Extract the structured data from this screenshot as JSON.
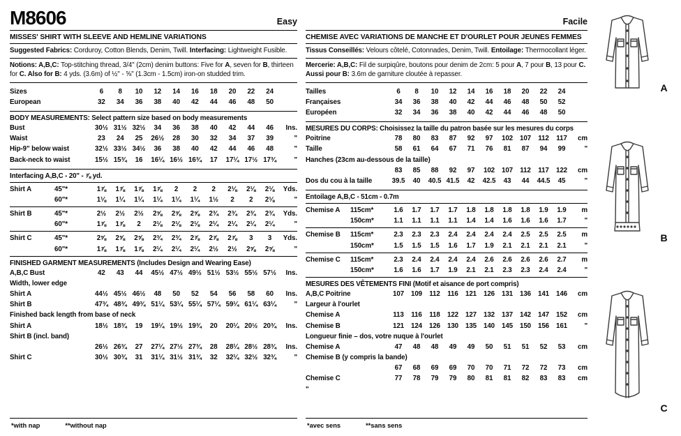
{
  "header": {
    "pattern_number": "M8606"
  },
  "sketches": {
    "labels": [
      "A",
      "B",
      "C"
    ]
  },
  "english": {
    "difficulty": "Easy",
    "title": "MISSES' SHIRT WITH SLEEVE AND HEMLINE VARIATIONS",
    "fabrics": [
      {
        "t": "Suggested Fabrics: ",
        "b": 1
      },
      {
        "t": "Corduroy, Cotton Blends, Denim, Twill. ",
        "b": 0
      },
      {
        "t": "Interfacing: ",
        "b": 1
      },
      {
        "t": "Lightweight Fusible.",
        "b": 0
      }
    ],
    "notions": [
      {
        "t": "Notions: A,B,C: ",
        "b": 1
      },
      {
        "t": "Top-stitching thread, 3/4\" (2cm) denim buttons: Five for ",
        "b": 0
      },
      {
        "t": "A",
        "b": 1
      },
      {
        "t": ", seven for ",
        "b": 0
      },
      {
        "t": "B",
        "b": 1
      },
      {
        "t": ", thirteen for ",
        "b": 0
      },
      {
        "t": "C. ",
        "b": 1
      },
      {
        "t": "Also for B: ",
        "b": 1
      },
      {
        "t": "4 yds. (3.6m) of ½\" - ⅝\" (1.3cm - 1.5cm) iron-on studded trim.",
        "b": 0
      }
    ],
    "sizes_rows": [
      {
        "label": "Sizes",
        "sub": "",
        "values": [
          "6",
          "8",
          "10",
          "12",
          "14",
          "16",
          "18",
          "20",
          "22",
          "24"
        ],
        "unit": ""
      },
      {
        "label": "European",
        "sub": "",
        "values": [
          "32",
          "34",
          "36",
          "38",
          "40",
          "42",
          "44",
          "46",
          "48",
          "50"
        ],
        "unit": ""
      }
    ],
    "body_header": "BODY MEASUREMENTS: Select pattern size based on body measurements",
    "body_rows": [
      {
        "label": "Bust",
        "sub": "",
        "values": [
          "30½",
          "31½",
          "32½",
          "34",
          "36",
          "38",
          "40",
          "42",
          "44",
          "46"
        ],
        "unit": "Ins."
      },
      {
        "label": "Waist",
        "sub": "",
        "values": [
          "23",
          "24",
          "25",
          "26½",
          "28",
          "30",
          "32",
          "34",
          "37",
          "39"
        ],
        "unit": "\""
      },
      {
        "label": "Hip-9\" below waist",
        "sub": "",
        "values": [
          "32½",
          "33½",
          "34½",
          "36",
          "38",
          "40",
          "42",
          "44",
          "46",
          "48"
        ],
        "unit": "\""
      },
      {
        "label": "Back-neck to waist",
        "sub": "",
        "values": [
          "15½",
          "15¾",
          "16",
          "16¼",
          "16½",
          "16¾",
          "17",
          "17¼",
          "17½",
          "17¾"
        ],
        "unit": "\""
      }
    ],
    "interfacing_note": "Interfacing A,B,C - 20\" - ⅞ yd.",
    "yardage_rows": [
      {
        "label": "Shirt A",
        "sub": "45\"*",
        "values": [
          "1⅞",
          "1⅞",
          "1⅞",
          "1⅞",
          "2",
          "2",
          "2",
          "2⅛",
          "2⅛",
          "2⅛"
        ],
        "unit": "Yds."
      },
      {
        "label": "",
        "sub": "60\"*",
        "values": [
          "1⅛",
          "1¼",
          "1¼",
          "1¼",
          "1¼",
          "1¼",
          "1½",
          "2",
          "2",
          "2⅛"
        ],
        "unit": "\""
      },
      {
        "rule": true
      },
      {
        "label": "Shirt B",
        "sub": "45\"*",
        "values": [
          "2½",
          "2½",
          "2½",
          "2⅝",
          "2⅝",
          "2⅝",
          "2¾",
          "2¾",
          "2¾",
          "2¾"
        ],
        "unit": "Yds."
      },
      {
        "label": "",
        "sub": "60\"*",
        "values": [
          "1⅞",
          "1⅞",
          "2",
          "2⅛",
          "2⅛",
          "2⅛",
          "2¼",
          "2¼",
          "2¼",
          "2¼"
        ],
        "unit": "\""
      },
      {
        "rule": true
      },
      {
        "label": "Shirt C",
        "sub": "45\"*",
        "values": [
          "2⅝",
          "2⅝",
          "2⅝",
          "2¾",
          "2¾",
          "2⅞",
          "2⅞",
          "2⅞",
          "3",
          "3"
        ],
        "unit": "Yds."
      },
      {
        "label": "",
        "sub": "60\"*",
        "values": [
          "1⅞",
          "1⅞",
          "1⅞",
          "2¼",
          "2¼",
          "2¼",
          "2½",
          "2½",
          "2⅝",
          "2⅝"
        ],
        "unit": "\""
      }
    ],
    "finished_header": "FINISHED GARMENT MEASUREMENTS (Includes Design and Wearing Ease)",
    "finished_rows": [
      {
        "label": "A,B,C Bust",
        "sub": "",
        "values": [
          "42",
          "43",
          "44",
          "45½",
          "47½",
          "49½",
          "51½",
          "53½",
          "55½",
          "57½"
        ],
        "unit": "Ins."
      },
      {
        "label": "Width, lower edge",
        "sub": "",
        "values": [],
        "unit": ""
      },
      {
        "label": "Shirt A",
        "sub": "",
        "values": [
          "44½",
          "45½",
          "46½",
          "48",
          "50",
          "52",
          "54",
          "56",
          "58",
          "60"
        ],
        "unit": "Ins."
      },
      {
        "label": "Shirt B",
        "sub": "",
        "values": [
          "47¾",
          "48¾",
          "49¾",
          "51¼",
          "53¼",
          "55¼",
          "57¼",
          "59¼",
          "61¼",
          "63¼"
        ],
        "unit": "\""
      },
      {
        "label": "Finished back length from base of neck",
        "sub": "",
        "values": [],
        "unit": ""
      },
      {
        "label": "Shirt A",
        "sub": "",
        "values": [
          "18½",
          "18¾",
          "19",
          "19¼",
          "19½",
          "19¾",
          "20",
          "20¼",
          "20½",
          "20¾"
        ],
        "unit": "Ins."
      },
      {
        "label": "Shirt B (incl. band)",
        "sub": "",
        "values": [],
        "unit": ""
      },
      {
        "label": "",
        "sub": "",
        "values": [
          "26½",
          "26¾",
          "27",
          "27¼",
          "27½",
          "27¾",
          "28",
          "28¼",
          "28½",
          "28¾"
        ],
        "unit": "Ins."
      },
      {
        "label": "Shirt C",
        "sub": "",
        "values": [
          "30½",
          "30¾",
          "31",
          "31¼",
          "31½",
          "31¾",
          "32",
          "32¼",
          "32½",
          "32¾"
        ],
        "unit": "\""
      }
    ],
    "footnotes": {
      "n1": "*with nap",
      "n2": "**without nap"
    }
  },
  "french": {
    "difficulty": "Facile",
    "title": "CHEMISE AVEC VARIATIONS DE MANCHE ET D'OURLET POUR JEUNES FEMMES",
    "fabrics": [
      {
        "t": "Tissus Conseillés: ",
        "b": 1
      },
      {
        "t": "Velours côtelé, Cotonnades, Denim, Twill. ",
        "b": 0
      },
      {
        "t": "Entoilage: ",
        "b": 1
      },
      {
        "t": "Thermocollant léger.",
        "b": 0
      }
    ],
    "notions": [
      {
        "t": "Mercerie: A,B,C: ",
        "b": 1
      },
      {
        "t": "Fil de surpiqûre, boutons pour denim de 2cm: 5 pour ",
        "b": 0
      },
      {
        "t": "A",
        "b": 1
      },
      {
        "t": ", 7 pour ",
        "b": 0
      },
      {
        "t": "B",
        "b": 1
      },
      {
        "t": ", 13 pour ",
        "b": 0
      },
      {
        "t": "C. ",
        "b": 1
      },
      {
        "t": "Aussi pour B: ",
        "b": 1
      },
      {
        "t": "3.6m de garniture cloutée à repasser.",
        "b": 0
      }
    ],
    "sizes_rows": [
      {
        "label": "Tailles",
        "sub": "",
        "values": [
          "6",
          "8",
          "10",
          "12",
          "14",
          "16",
          "18",
          "20",
          "22",
          "24"
        ],
        "unit": ""
      },
      {
        "label": "Françaises",
        "sub": "",
        "values": [
          "34",
          "36",
          "38",
          "40",
          "42",
          "44",
          "46",
          "48",
          "50",
          "52"
        ],
        "unit": ""
      },
      {
        "label": "Européen",
        "sub": "",
        "values": [
          "32",
          "34",
          "36",
          "38",
          "40",
          "42",
          "44",
          "46",
          "48",
          "50"
        ],
        "unit": ""
      }
    ],
    "body_header": "MESURES DU CORPS: Choisissez la taille du patron basée sur les mesures du corps",
    "body_rows": [
      {
        "label": "Poitrine",
        "sub": "",
        "values": [
          "78",
          "80",
          "83",
          "87",
          "92",
          "97",
          "102",
          "107",
          "112",
          "117"
        ],
        "unit": "cm"
      },
      {
        "label": "Taille",
        "sub": "",
        "values": [
          "58",
          "61",
          "64",
          "67",
          "71",
          "76",
          "81",
          "87",
          "94",
          "99"
        ],
        "unit": "\""
      },
      {
        "label": "Hanches (23cm au-dessous de la taille)",
        "sub": "",
        "values": [],
        "unit": ""
      },
      {
        "label": "",
        "sub": "",
        "values": [
          "83",
          "85",
          "88",
          "92",
          "97",
          "102",
          "107",
          "112",
          "117",
          "122"
        ],
        "unit": "cm"
      },
      {
        "label": "Dos du cou à la taille",
        "sub": "",
        "values": [
          "39.5",
          "40",
          "40.5",
          "41.5",
          "42",
          "42.5",
          "43",
          "44",
          "44.5",
          "45"
        ],
        "unit": "\""
      }
    ],
    "interfacing_note": "Entoilage A,B,C - 51cm - 0.7m",
    "yardage_rows": [
      {
        "label": "Chemise A",
        "sub": "115cm*",
        "values": [
          "1.6",
          "1.7",
          "1.7",
          "1.7",
          "1.8",
          "1.8",
          "1.8",
          "1.8",
          "1.9",
          "1.9"
        ],
        "unit": "m"
      },
      {
        "label": "",
        "sub": "150cm*",
        "values": [
          "1.1",
          "1.1",
          "1.1",
          "1.1",
          "1.4",
          "1.4",
          "1.6",
          "1.6",
          "1.6",
          "1.7"
        ],
        "unit": "\""
      },
      {
        "rule": true
      },
      {
        "label": "Chemise B",
        "sub": "115cm*",
        "values": [
          "2.3",
          "2.3",
          "2.3",
          "2.4",
          "2.4",
          "2.4",
          "2.4",
          "2.5",
          "2.5",
          "2.5"
        ],
        "unit": "m"
      },
      {
        "label": "",
        "sub": "150cm*",
        "values": [
          "1.5",
          "1.5",
          "1.5",
          "1.6",
          "1.7",
          "1.9",
          "2.1",
          "2.1",
          "2.1",
          "2.1"
        ],
        "unit": "\""
      },
      {
        "rule": true
      },
      {
        "label": "Chemise C",
        "sub": "115cm*",
        "values": [
          "2.3",
          "2.4",
          "2.4",
          "2.4",
          "2.4",
          "2.6",
          "2.6",
          "2.6",
          "2.6",
          "2.7"
        ],
        "unit": "m"
      },
      {
        "label": "",
        "sub": "150cm*",
        "values": [
          "1.6",
          "1.6",
          "1.7",
          "1.9",
          "2.1",
          "2.1",
          "2.3",
          "2.3",
          "2.4",
          "2.4"
        ],
        "unit": "\""
      }
    ],
    "finished_header": "MESURES DES VÊTEMENTS FINI (Motif et aisance de port compris)",
    "finished_rows": [
      {
        "label": "A,B,C Poitrine",
        "sub": "",
        "values": [
          "107",
          "109",
          "112",
          "116",
          "121",
          "126",
          "131",
          "136",
          "141",
          "146"
        ],
        "unit": "cm"
      },
      {
        "label": "Largeur à l'ourlet",
        "sub": "",
        "values": [],
        "unit": ""
      },
      {
        "label": "Chemise A",
        "sub": "",
        "values": [
          "113",
          "116",
          "118",
          "122",
          "127",
          "132",
          "137",
          "142",
          "147",
          "152"
        ],
        "unit": "cm"
      },
      {
        "label": "Chemise B",
        "sub": "",
        "values": [
          "121",
          "124",
          "126",
          "130",
          "135",
          "140",
          "145",
          "150",
          "156",
          "161"
        ],
        "unit": "\""
      },
      {
        "label": "Longueur finie – dos, votre nuque à l'ourlet",
        "sub": "",
        "values": [],
        "unit": ""
      },
      {
        "label": "Chemise A",
        "sub": "",
        "values": [
          "47",
          "48",
          "48",
          "49",
          "49",
          "50",
          "51",
          "51",
          "52",
          "53"
        ],
        "unit": "cm"
      },
      {
        "label": "Chemise B (y compris la bande)",
        "sub": "",
        "values": [],
        "unit": ""
      },
      {
        "label": "",
        "sub": "",
        "values": [
          "67",
          "68",
          "69",
          "69",
          "70",
          "70",
          "71",
          "72",
          "72",
          "73"
        ],
        "unit": "cm"
      },
      {
        "label": "Chemise C",
        "sub": "",
        "values": [
          "77",
          "78",
          "79",
          "79",
          "80",
          "81",
          "81",
          "82",
          "83",
          "83"
        ],
        "unit": "cm"
      },
      {
        "label": "\"",
        "sub": "",
        "values": [],
        "unit": ""
      }
    ],
    "footnotes": {
      "n1": "*avec sens",
      "n2": "**sans sens"
    }
  }
}
